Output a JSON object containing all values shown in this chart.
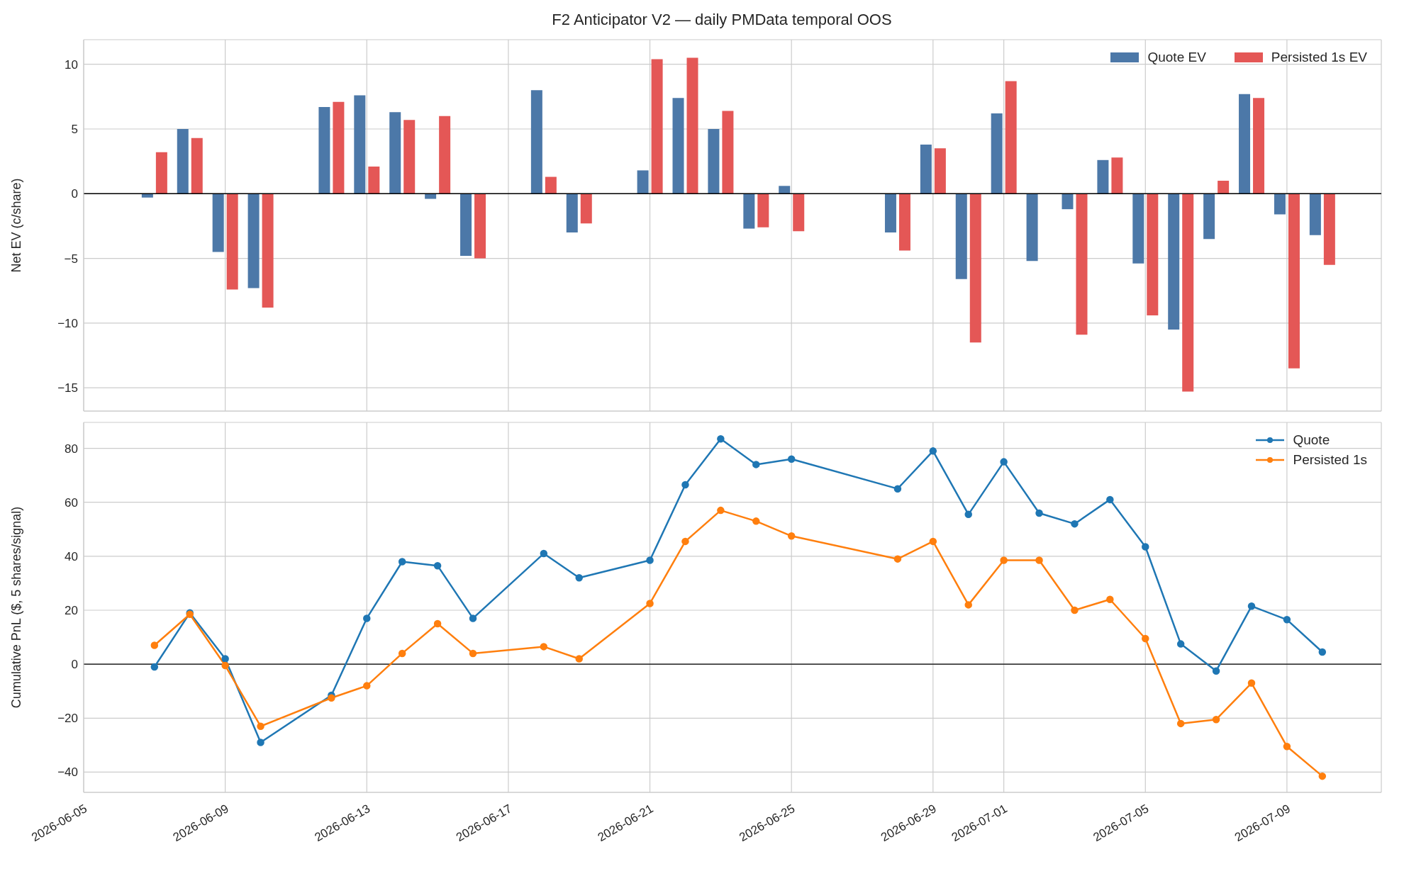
{
  "chart_data": [
    {
      "type": "bar",
      "title": "F2 Anticipator V2 — daily PMData temporal OOS",
      "ylabel": "Net EV (c/share)",
      "x": [
        "2026-06-07",
        "2026-06-08",
        "2026-06-09",
        "2026-06-10",
        "2026-06-12",
        "2026-06-13",
        "2026-06-14",
        "2026-06-15",
        "2026-06-16",
        "2026-06-18",
        "2026-06-19",
        "2026-06-21",
        "2026-06-22",
        "2026-06-23",
        "2026-06-24",
        "2026-06-25",
        "2026-06-28",
        "2026-06-29",
        "2026-06-30",
        "2026-07-01",
        "2026-07-02",
        "2026-07-03",
        "2026-07-04",
        "2026-07-05",
        "2026-07-06",
        "2026-07-07",
        "2026-07-08",
        "2026-07-09",
        "2026-07-10"
      ],
      "series": [
        {
          "name": "Quote EV",
          "color": "#4c78a8",
          "values": [
            -0.3,
            5.0,
            -4.5,
            -7.3,
            6.7,
            7.6,
            6.3,
            -0.4,
            -4.8,
            8.0,
            -3.0,
            1.8,
            7.4,
            5.0,
            -2.7,
            0.6,
            -3.0,
            3.8,
            -6.6,
            6.2,
            -5.2,
            -1.2,
            2.6,
            -5.4,
            -10.5,
            -3.5,
            7.7,
            -1.6,
            -3.2
          ]
        },
        {
          "name": "Persisted 1s EV",
          "color": "#e45756",
          "values": [
            3.2,
            4.3,
            -7.4,
            -8.8,
            7.1,
            2.1,
            5.7,
            6.0,
            -5.0,
            1.3,
            -2.3,
            10.4,
            10.5,
            6.4,
            -2.6,
            -2.9,
            -4.4,
            3.5,
            -11.5,
            8.7,
            0,
            -10.9,
            2.8,
            -9.4,
            -15.3,
            1.0,
            7.4,
            -13.5,
            -5.5
          ]
        }
      ],
      "xlim": [
        "2026-06-05",
        "2026-07-11T16:00"
      ],
      "xticks": [
        "2026-06-05",
        "2026-06-09",
        "2026-06-13",
        "2026-06-17",
        "2026-06-21",
        "2026-06-25",
        "2026-06-29",
        "2026-07-01",
        "2026-07-05",
        "2026-07-09"
      ],
      "ylim": [
        -16.8,
        11.9
      ],
      "yticks": [
        {
          "value": -15,
          "label": "−15"
        },
        {
          "value": -10,
          "label": "−10"
        },
        {
          "value": -5,
          "label": "−5"
        },
        0,
        5,
        10
      ],
      "ref_lines": [
        {
          "axis": "y",
          "value": 0,
          "color": "#000000"
        }
      ],
      "tick_labels": "y",
      "grid": true,
      "legend": "top right"
    },
    {
      "type": "line",
      "ylabel": "Cumulative PnL ($, 5 shares/signal)",
      "x": [
        "2026-06-07",
        "2026-06-08",
        "2026-06-09",
        "2026-06-10",
        "2026-06-12",
        "2026-06-13",
        "2026-06-14",
        "2026-06-15",
        "2026-06-16",
        "2026-06-18",
        "2026-06-19",
        "2026-06-21",
        "2026-06-22",
        "2026-06-23",
        "2026-06-24",
        "2026-06-25",
        "2026-06-28",
        "2026-06-29",
        "2026-06-30",
        "2026-07-01",
        "2026-07-02",
        "2026-07-03",
        "2026-07-04",
        "2026-07-05",
        "2026-07-06",
        "2026-07-07",
        "2026-07-08",
        "2026-07-09",
        "2026-07-10"
      ],
      "series": [
        {
          "name": "Quote",
          "color": "#1f77b4",
          "values": [
            -1,
            19,
            2,
            -29,
            -11.5,
            17,
            38,
            36.5,
            17,
            41,
            32,
            38.5,
            66.5,
            83.5,
            74,
            76,
            65,
            79,
            55.5,
            75,
            56,
            52,
            61,
            43.5,
            7.5,
            -2.5,
            21.5,
            16.5,
            4.5
          ]
        },
        {
          "name": "Persisted 1s",
          "color": "#ff7f0e",
          "values": [
            7,
            18.5,
            -0.5,
            -23,
            -12.5,
            -8,
            4,
            15,
            4,
            6.5,
            2,
            22.5,
            45.5,
            57,
            53,
            47.5,
            39,
            45.5,
            22,
            38.5,
            38.5,
            20,
            24,
            9.5,
            -22,
            -20.5,
            -7,
            -30.5,
            -41.5
          ]
        }
      ],
      "xlim": [
        "2026-06-05",
        "2026-07-11T16:00"
      ],
      "xticks": [
        "2026-06-05",
        "2026-06-09",
        "2026-06-13",
        "2026-06-17",
        "2026-06-21",
        "2026-06-25",
        "2026-06-29",
        "2026-07-01",
        "2026-07-05",
        "2026-07-09"
      ],
      "ylim": [
        -47.5,
        89.6
      ],
      "yticks": [
        {
          "value": -40,
          "label": "−40"
        },
        {
          "value": -20,
          "label": "−20"
        },
        0,
        20,
        40,
        60,
        80
      ],
      "ref_lines": [
        {
          "axis": "y",
          "value": 0,
          "color": "#000000"
        }
      ],
      "grid": true,
      "legend": "top right",
      "marker": "circle",
      "line_style": "solid"
    }
  ]
}
